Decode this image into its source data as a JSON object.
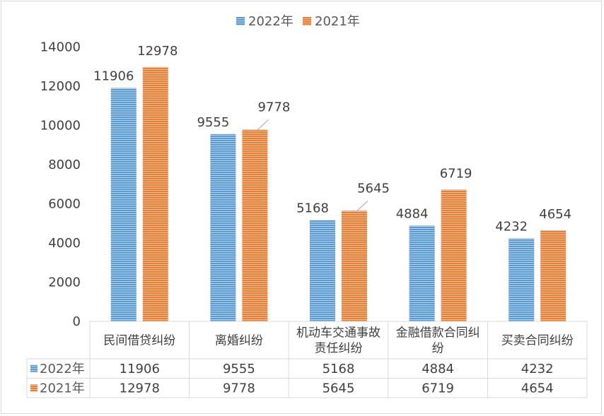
{
  "chart_data": {
    "type": "bar",
    "categories": [
      "民间借贷纠纷",
      "离婚纠纷",
      "机动车交通事故责任纠纷",
      "金融借款合同纠纷",
      "买卖合同纠纷"
    ],
    "category_lines": [
      [
        "民间借贷纠纷"
      ],
      [
        "离婚纠纷"
      ],
      [
        "机动车交通事故",
        "责任纠纷"
      ],
      [
        "金融借款合同纠",
        "纷"
      ],
      [
        "买卖合同纠纷"
      ]
    ],
    "series": [
      {
        "name": "2022年",
        "values": [
          11906,
          9555,
          5168,
          4884,
          4232
        ],
        "color": "#5b9bd5"
      },
      {
        "name": "2021年",
        "values": [
          12978,
          9778,
          5645,
          6719,
          4654
        ],
        "color": "#ed7d31"
      }
    ],
    "ylim": [
      0,
      14000
    ],
    "yticks": [
      0,
      2000,
      4000,
      6000,
      8000,
      10000,
      12000,
      14000
    ],
    "grid": false,
    "legend_position": "top",
    "data_table": true,
    "bar_pattern": "horizontal-stripes"
  }
}
